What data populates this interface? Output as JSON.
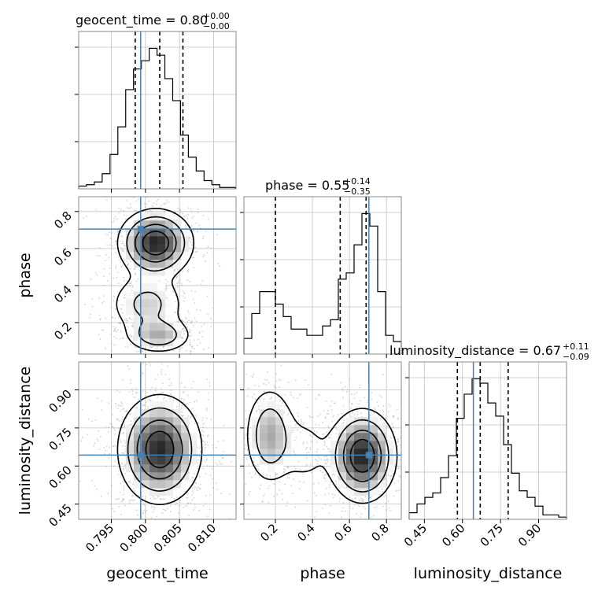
{
  "chart_data": {
    "type": "corner",
    "parameters": [
      "geocent_time",
      "phase",
      "luminosity_distance"
    ],
    "truth": {
      "geocent_time": 0.7993,
      "phase": 0.705,
      "luminosity_distance": 0.643
    },
    "colors": {
      "truth": "#4682b4",
      "hist": "#000000",
      "grid": "#c0c0c0",
      "points": "#9a9a9a"
    },
    "grid": true,
    "titles": [
      {
        "param": "geocent_time",
        "text": "geocent_time = 0.80",
        "plus": "+0.00",
        "minus": "−0.00"
      },
      {
        "param": "phase",
        "text": "phase = 0.55",
        "plus": "+0.14",
        "minus": "−0.35"
      },
      {
        "param": "luminosity_distance",
        "text": "luminosity_distance = 0.67",
        "plus": "+0.11",
        "minus": "−0.09"
      }
    ],
    "axes": {
      "geocent_time": {
        "label": "geocent_time",
        "range": [
          0.7902,
          0.8133
        ],
        "ticks": [
          0.795,
          0.8,
          0.805,
          0.81
        ],
        "ticklabels": [
          "0.795",
          "0.800",
          "0.805",
          "0.810"
        ]
      },
      "phase": {
        "label": "phase",
        "range": [
          0.03,
          0.88
        ],
        "ticks": [
          0.2,
          0.4,
          0.6,
          0.8
        ],
        "ticklabels": [
          "0.2",
          "0.4",
          "0.6",
          "0.8"
        ]
      },
      "luminosity_distance": {
        "label": "luminosity_distance",
        "range": [
          0.39,
          1.01
        ],
        "ticks": [
          0.45,
          0.6,
          0.75,
          0.9
        ],
        "ticklabels": [
          "0.45",
          "0.60",
          "0.75",
          "0.90"
        ]
      }
    },
    "hist1d": {
      "geocent_time": {
        "edges": [
          0.7902,
          0.79135,
          0.7925,
          0.79365,
          0.7948,
          0.79595,
          0.7971,
          0.79825,
          0.7994,
          0.80055,
          0.8017,
          0.80285,
          0.804,
          0.80515,
          0.8063,
          0.80745,
          0.8086,
          0.80975,
          0.8109,
          0.81205,
          0.8132
        ],
        "counts": [
          2,
          3,
          5,
          11,
          25,
          45,
          72,
          87,
          93,
          102,
          97,
          80,
          64,
          39,
          23,
          13,
          6,
          3,
          1,
          1
        ],
        "quantiles": [
          0.7985,
          0.8021,
          0.8055
        ]
      },
      "phase": {
        "edges": [
          0.03,
          0.0725,
          0.115,
          0.1575,
          0.2,
          0.2425,
          0.285,
          0.3275,
          0.37,
          0.4125,
          0.455,
          0.4975,
          0.54,
          0.5825,
          0.625,
          0.6675,
          0.71,
          0.7525,
          0.795,
          0.8375,
          0.88
        ],
        "counts": [
          5,
          13,
          20,
          20,
          16,
          12,
          8,
          8,
          6,
          6,
          9,
          11,
          24,
          26,
          35,
          45,
          41,
          20,
          6,
          4
        ],
        "quantiles": [
          0.2,
          0.55,
          0.69
        ]
      },
      "luminosity_distance": {
        "edges": [
          0.39,
          0.421,
          0.452,
          0.483,
          0.514,
          0.545,
          0.576,
          0.607,
          0.638,
          0.669,
          0.7,
          0.731,
          0.762,
          0.793,
          0.824,
          0.855,
          0.886,
          0.917,
          0.948,
          0.979,
          1.01
        ],
        "counts": [
          3,
          7,
          10,
          12,
          19,
          29,
          46,
          57,
          64,
          62,
          53,
          47,
          34,
          21,
          13,
          10,
          6,
          2,
          2,
          1
        ],
        "quantiles": [
          0.58,
          0.67,
          0.78
        ]
      }
    },
    "samples2d": [
      {
        "x": "geocent_time",
        "y": "phase",
        "blobs": [
          {
            "cx": 0.8015,
            "cy": 0.63,
            "sx": 0.0027,
            "sy": 0.09,
            "w": 0.55
          },
          {
            "cx": 0.8003,
            "cy": 0.3,
            "sx": 0.003,
            "sy": 0.09,
            "w": 0.2
          },
          {
            "cx": 0.802,
            "cy": 0.13,
            "sx": 0.0025,
            "sy": 0.05,
            "w": 0.25
          }
        ]
      },
      {
        "x": "geocent_time",
        "y": "luminosity_distance",
        "blobs": [
          {
            "cx": 0.8021,
            "cy": 0.665,
            "sx": 0.003,
            "sy": 0.105,
            "w": 1.0
          }
        ]
      },
      {
        "x": "phase",
        "y": "luminosity_distance",
        "blobs": [
          {
            "cx": 0.67,
            "cy": 0.64,
            "sx": 0.09,
            "sy": 0.09,
            "w": 0.6
          },
          {
            "cx": 0.17,
            "cy": 0.72,
            "sx": 0.07,
            "sy": 0.1,
            "w": 0.3
          },
          {
            "cx": 0.36,
            "cy": 0.66,
            "sx": 0.08,
            "sy": 0.09,
            "w": 0.1
          }
        ]
      }
    ]
  }
}
